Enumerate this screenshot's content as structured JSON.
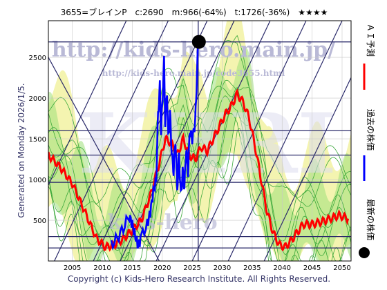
{
  "chart_data": {
    "type": "line",
    "title": "3655=ブレインP　c:2690　m:966(-64%)　t:1726(-36%)　★★★★",
    "side_label": "Generated on Monday 2026/1/5.",
    "copyright": "Copyright (c) Kids-Hero Research Institute. All Rights Reserved.",
    "watermarks": [
      "http://kids-hero.main.jp/",
      "http://kids-hero.main.jp/code3655.html",
      "KHRI",
      "kids-hero"
    ],
    "xlim": [
      2001,
      2051.5
    ],
    "ylim": [
      0,
      2950
    ],
    "x_ticks": [
      2005,
      2010,
      2015,
      2020,
      2025,
      2030,
      2035,
      2040,
      2045,
      2050
    ],
    "y_ticks": [
      500,
      1000,
      1500,
      2000,
      2500
    ],
    "horizontal_levels": [
      160,
      300,
      966,
      1300,
      1600,
      2690
    ],
    "current_marker": {
      "x": 2026,
      "y": 2690
    },
    "legend": [
      {
        "label": "ＡＩ予測",
        "color": "#ff0000"
      },
      {
        "label": "過去の株価",
        "color": "#0000ff"
      },
      {
        "label": "最新の株価",
        "color": "#000000"
      }
    ],
    "series": [
      {
        "name": "ＡＩ予測",
        "color": "#ff0000",
        "points": [
          [
            2001,
            1300
          ],
          [
            2003,
            1150
          ],
          [
            2005,
            950
          ],
          [
            2007,
            620
          ],
          [
            2009,
            280
          ],
          [
            2010.5,
            170
          ],
          [
            2012,
            200
          ],
          [
            2013.5,
            270
          ],
          [
            2015,
            380
          ],
          [
            2016.5,
            500
          ],
          [
            2018,
            800
          ],
          [
            2019.5,
            1200
          ],
          [
            2020.5,
            1500
          ],
          [
            2021.5,
            1450
          ],
          [
            2022.5,
            1300
          ],
          [
            2023.5,
            1500
          ],
          [
            2024.5,
            1300
          ],
          [
            2025.5,
            1250
          ],
          [
            2026.5,
            1400
          ],
          [
            2027.5,
            1350
          ],
          [
            2028.5,
            1500
          ],
          [
            2029.5,
            1650
          ],
          [
            2030.5,
            1800
          ],
          [
            2031.5,
            1900
          ],
          [
            2032.5,
            2050
          ],
          [
            2033.5,
            1950
          ],
          [
            2034.5,
            1750
          ],
          [
            2035.5,
            1400
          ],
          [
            2036.5,
            1000
          ],
          [
            2037.5,
            600
          ],
          [
            2038.5,
            350
          ],
          [
            2039.5,
            200
          ],
          [
            2040.5,
            170
          ],
          [
            2041.5,
            250
          ],
          [
            2042.5,
            350
          ],
          [
            2043.5,
            450
          ],
          [
            2045,
            450
          ],
          [
            2046.5,
            480
          ],
          [
            2048,
            520
          ],
          [
            2049.5,
            560
          ],
          [
            2051,
            520
          ]
        ]
      },
      {
        "name": "過去の株価",
        "color": "#0000ff",
        "points": [
          [
            2011.5,
            200
          ],
          [
            2012.5,
            280
          ],
          [
            2013.5,
            400
          ],
          [
            2014.5,
            560
          ],
          [
            2015,
            450
          ],
          [
            2015.5,
            300
          ],
          [
            2016,
            180
          ],
          [
            2016.5,
            300
          ],
          [
            2017.5,
            450
          ],
          [
            2018,
            600
          ],
          [
            2018.5,
            850
          ],
          [
            2019,
            1000
          ],
          [
            2019.3,
            1800
          ],
          [
            2019.6,
            2150
          ],
          [
            2019.8,
            1600
          ],
          [
            2020,
            1900
          ],
          [
            2020.3,
            2450
          ],
          [
            2020.5,
            1700
          ],
          [
            2020.8,
            2100
          ],
          [
            2021,
            1500
          ],
          [
            2021.3,
            1800
          ],
          [
            2021.6,
            1300
          ],
          [
            2021.9,
            1100
          ],
          [
            2022.2,
            1500
          ],
          [
            2022.5,
            900
          ],
          [
            2022.8,
            1300
          ],
          [
            2023.1,
            800
          ],
          [
            2023.4,
            1100
          ],
          [
            2023.7,
            900
          ],
          [
            2024,
            1400
          ],
          [
            2024.3,
            1100
          ],
          [
            2024.6,
            1600
          ],
          [
            2025,
            1500
          ],
          [
            2025.5,
            1700
          ],
          [
            2025.8,
            2300
          ],
          [
            2026,
            2690
          ]
        ]
      }
    ],
    "band_colors": {
      "yellow": "#f4f4b0",
      "green": "#9ee07a",
      "green_line": "#3aa83a"
    },
    "diagonal_color": "#2a2a6a",
    "grid": true
  }
}
